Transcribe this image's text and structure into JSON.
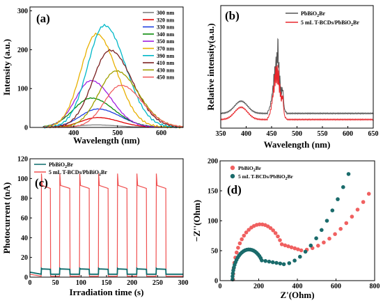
{
  "chart_data": [
    {
      "type": "line",
      "panel": "(a)",
      "xlabel": "Wavelength (nm)",
      "ylabel": "Intensity (a.u.)",
      "xlim": [
        300,
        650
      ],
      "ylim": [
        0,
        310
      ],
      "xticks": [
        400,
        500,
        600
      ],
      "yticks": [
        0,
        100,
        200,
        300
      ],
      "legend_position": "top-right",
      "series": [
        {
          "name": "300 nm",
          "color": "#7f7f7f",
          "peak_x": 450,
          "peak_y": 6,
          "sigma": 42
        },
        {
          "name": "320 nm",
          "color": "#e00000",
          "peak_x": 455,
          "peak_y": 25,
          "sigma": 42
        },
        {
          "name": "330 nm",
          "color": "#1f3fe0",
          "peak_x": 455,
          "peak_y": 47,
          "sigma": 44
        },
        {
          "name": "340 nm",
          "color": "#0a8a0a",
          "peak_x": 440,
          "peak_y": 75,
          "sigma": 45
        },
        {
          "name": "350 nm",
          "color": "#a020e0",
          "peak_x": 440,
          "peak_y": 120,
          "sigma": 40
        },
        {
          "name": "370 nm",
          "color": "#e8b000",
          "peak_x": 452,
          "peak_y": 240,
          "sigma": 40
        },
        {
          "name": "390 nm",
          "color": "#00b8c8",
          "peak_x": 470,
          "peak_y": 262,
          "sigma": 42
        },
        {
          "name": "410 nm",
          "color": "#7a2020",
          "peak_x": 483,
          "peak_y": 198,
          "sigma": 44
        },
        {
          "name": "430 nm",
          "color": "#a0a000",
          "peak_x": 497,
          "peak_y": 145,
          "sigma": 44
        },
        {
          "name": "450 nm",
          "color": "#f06060",
          "peak_x": 508,
          "peak_y": 108,
          "sigma": 42
        }
      ]
    },
    {
      "type": "line",
      "panel": "(b)",
      "xlabel": "Wavelength (nm)",
      "ylabel": "Relative intensity(a.u.)",
      "xlim": [
        350,
        650
      ],
      "xticks": [
        350,
        400,
        450,
        500,
        550,
        600,
        650
      ],
      "legend_position": "top-right",
      "series": [
        {
          "name": "PbBiO2Br",
          "color": "#555555"
        },
        {
          "name": "5 mL T-BCDs/PbBiO2Br",
          "color": "#e8262b"
        }
      ]
    },
    {
      "type": "line",
      "panel": "(c)",
      "xlabel": "Irradiation time (s)",
      "ylabel": "Photocurrent (nA)",
      "xlim": [
        0,
        300
      ],
      "ylim": [
        0,
        120
      ],
      "xticks": [
        0,
        50,
        100,
        150,
        200,
        250,
        300
      ],
      "yticks": [
        0,
        20,
        40,
        60,
        80,
        100,
        120
      ],
      "legend_position": "top-left",
      "on_intervals": [
        [
          22,
          40
        ],
        [
          58,
          78
        ],
        [
          97,
          116
        ],
        [
          134,
          153
        ],
        [
          171,
          190
        ],
        [
          209,
          228
        ],
        [
          247,
          266
        ]
      ],
      "series": [
        {
          "name": "PbBiO2Br",
          "color": "#0c6b6b",
          "on": 8,
          "off": 3
        },
        {
          "name": "5 mL T-BCDs/PbBiO2Br",
          "color": "#f05050",
          "on": 90,
          "off": 1
        }
      ]
    },
    {
      "type": "scatter",
      "panel": "(d)",
      "xlabel": "Z'(Ohm)",
      "ylabel": "−Z''(Ohm)",
      "xlim": [
        0,
        800
      ],
      "ylim": [
        0,
        200
      ],
      "xticks": [
        0,
        200,
        400,
        600,
        800
      ],
      "yticks": [
        0,
        50,
        100,
        150,
        200
      ],
      "legend_position": "top-left",
      "series": [
        {
          "name": "PbBiO2Br",
          "color": "#f06060",
          "semicircle_center": 210,
          "semicircle_radius": 150,
          "tail_start": 420,
          "tail_end": 770,
          "tail_top": 145
        },
        {
          "name": "5 mL T-BCDs/PbBiO2Br",
          "color": "#1a6b6b",
          "semicircle_center": 150,
          "semicircle_radius": 90,
          "tail_start": 330,
          "tail_end": 665,
          "tail_top": 178
        }
      ]
    }
  ]
}
